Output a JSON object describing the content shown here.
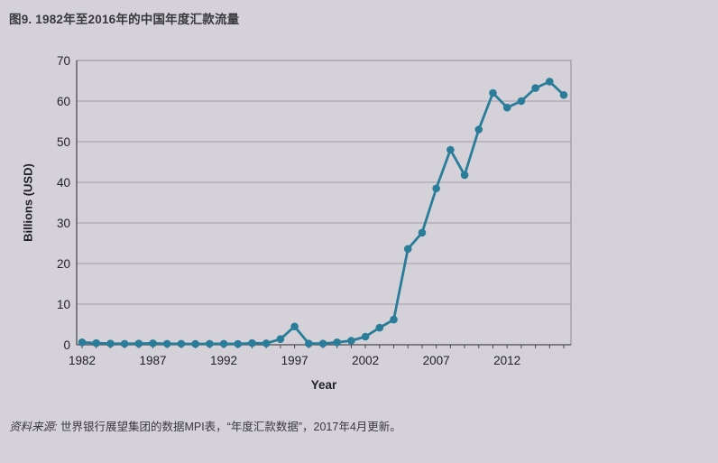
{
  "figure": {
    "title": "图9. 1982年至2016年的中国年度汇款流量",
    "source_label": "资料来源:",
    "source_text": " 世界银行展望集团的数据MPI表，“年度汇款数据”，2017年4月更新。"
  },
  "colors": {
    "background": "#d4d1d9",
    "line": "#2a7d99",
    "marker": "#2a7d99",
    "grid": "#a09da7",
    "border": "#8f8c96",
    "axis": "#4c4b51",
    "text": "#222226"
  },
  "chart_data": {
    "type": "line",
    "title": "图9. 1982年至2016年的中国年度汇款流量",
    "xlabel": "Year",
    "ylabel": "Billions (USD)",
    "series_name": "中国年度汇款流量",
    "x": [
      1982,
      1983,
      1984,
      1985,
      1986,
      1987,
      1988,
      1989,
      1990,
      1991,
      1992,
      1993,
      1994,
      1995,
      1996,
      1997,
      1998,
      1999,
      2000,
      2001,
      2002,
      2003,
      2004,
      2005,
      2006,
      2007,
      2008,
      2009,
      2010,
      2011,
      2012,
      2013,
      2014,
      2015,
      2016
    ],
    "values": [
      0.6,
      0.4,
      0.3,
      0.25,
      0.3,
      0.35,
      0.25,
      0.25,
      0.2,
      0.25,
      0.25,
      0.2,
      0.4,
      0.35,
      1.4,
      4.5,
      0.3,
      0.3,
      0.6,
      1.0,
      2.0,
      4.2,
      6.2,
      23.6,
      27.6,
      38.5,
      48.0,
      41.8,
      53.0,
      62.0,
      58.4,
      60.0,
      63.2,
      64.8,
      61.5
    ],
    "xticks": [
      1982,
      1987,
      1992,
      1997,
      2002,
      2007,
      2012
    ],
    "yticks": [
      0,
      10,
      20,
      30,
      40,
      50,
      60,
      70
    ],
    "ylim": [
      0,
      70
    ],
    "grid": "horizontal",
    "legend": "none",
    "marker": "circle"
  }
}
